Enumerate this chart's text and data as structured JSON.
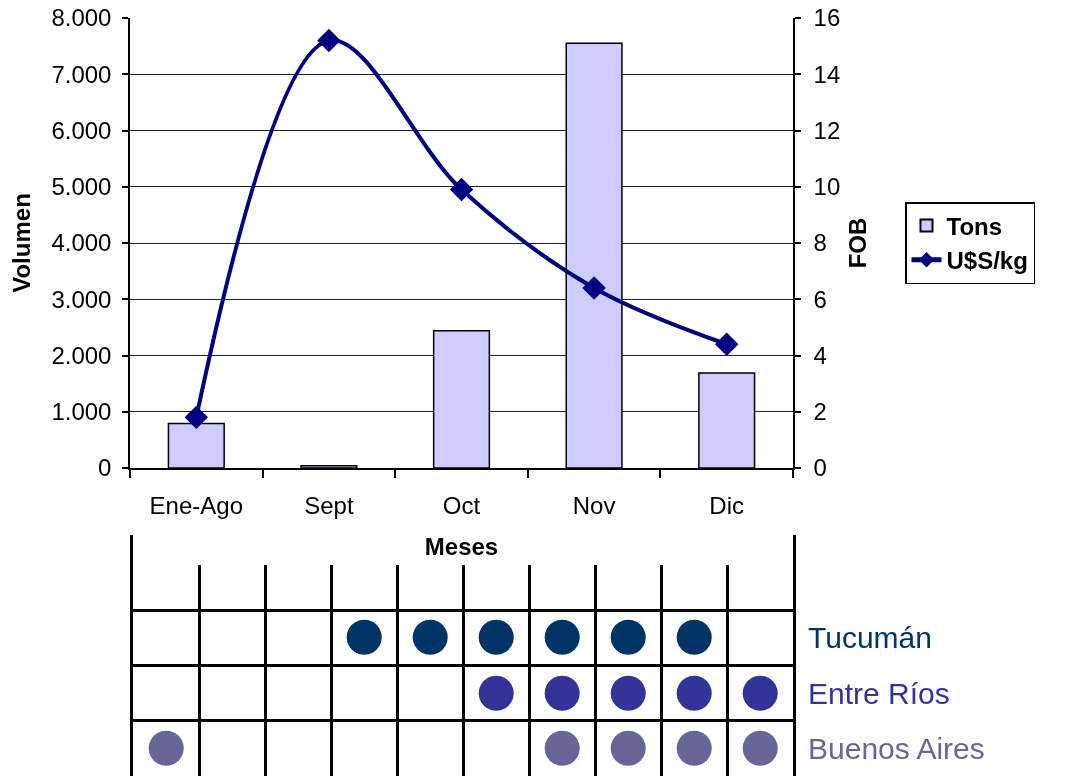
{
  "chart_data": [
    {
      "type": "bar",
      "categories": [
        "Ene-Ago",
        "Sept",
        "Oct",
        "Nov",
        "Dic"
      ],
      "series": [
        {
          "name": "Tons",
          "type": "bar",
          "color": "#ccccff",
          "values": [
            790,
            40,
            2440,
            7550,
            1690
          ]
        },
        {
          "name": "U$S/kg",
          "type": "line",
          "axis": "y2",
          "color": "#000080",
          "values": [
            1.8,
            15.2,
            9.9,
            6.4,
            4.4
          ],
          "marker": "diamond",
          "line_style": "solid"
        }
      ],
      "xlabel": "Meses",
      "ylabel": "Volumen",
      "y2label": "FOB",
      "ylim": [
        0,
        8000
      ],
      "yticks": [
        0,
        {
          "value": 1000,
          "label": "1.000"
        },
        {
          "value": 2000,
          "label": "2.000"
        },
        {
          "value": 3000,
          "label": "3.000"
        },
        {
          "value": 4000,
          "label": "4.000"
        },
        {
          "value": 5000,
          "label": "5.000"
        },
        {
          "value": 6000,
          "label": "6.000"
        },
        {
          "value": 7000,
          "label": "7.000"
        },
        {
          "value": 8000,
          "label": "8.000"
        }
      ],
      "y2lim": [
        0,
        16
      ],
      "y2ticks": [
        0,
        2,
        4,
        6,
        8,
        10,
        12,
        14,
        16
      ],
      "grid": "y",
      "legend": "right"
    },
    {
      "type": "other",
      "categories": [
        null,
        null,
        null,
        null,
        null,
        null,
        null,
        null,
        null,
        null
      ],
      "y_categories": [
        "Tucumán",
        "Entre Ríos",
        "Buenos Aires"
      ],
      "cell_labels": [
        [
          null,
          null,
          null,
          "●",
          "●",
          "●",
          "●",
          "●",
          "●",
          null
        ],
        [
          null,
          null,
          null,
          null,
          null,
          "●",
          "●",
          "●",
          "●",
          "●"
        ],
        [
          "●",
          null,
          null,
          null,
          null,
          null,
          "●",
          "●",
          "●",
          "●"
        ]
      ],
      "colors": [
        "#003366",
        "#333399",
        "#666699"
      ]
    }
  ]
}
